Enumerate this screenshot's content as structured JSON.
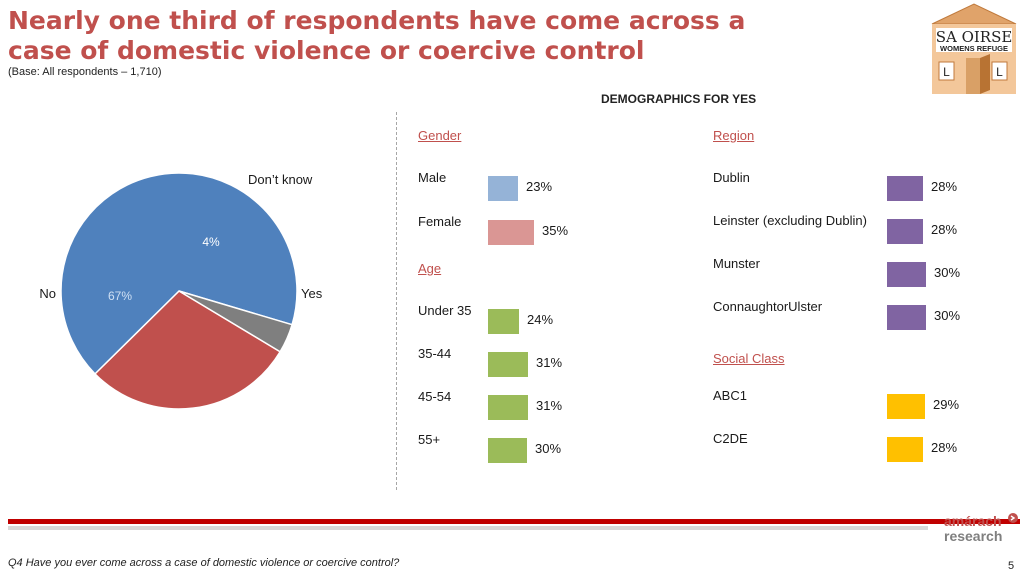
{
  "title": "Nearly one third of respondents have come across a case of domestic violence or coercive control",
  "base_note": "(Base: All respondents – 1,710)",
  "logo": {
    "line1": "SA OIRSE",
    "line2": "WOMENS REFUGE",
    "letter": "L"
  },
  "demographics_heading": "DEMOGRAPHICS FOR YES",
  "footer_question": "Q4 Have you ever come across a case of domestic violence or coercive control?",
  "page_number": "5",
  "brand": {
    "line1": "amárach",
    "line2": "research"
  },
  "colors": {
    "accent": "#c0504d",
    "no": "#4f81bd",
    "yes": "#c0504d",
    "dont_know": "#7f7f7f",
    "male": "#95b3d7",
    "female": "#da9694",
    "age": "#9bbb59",
    "region": "#8064a2",
    "social": "#ffc000"
  },
  "chart_data": [
    {
      "type": "pie",
      "slices": [
        {
          "label": "Yes",
          "value": 29,
          "value_label": "29%"
        },
        {
          "label": "No",
          "value": 67,
          "value_label": "67%"
        },
        {
          "label": "Don’t know",
          "value": 4,
          "value_label": "4%"
        }
      ]
    },
    {
      "type": "bar",
      "heading": "DEMOGRAPHICS FOR YES",
      "groups": [
        {
          "name": "Gender",
          "items": [
            {
              "label": "Male",
              "value": 23,
              "value_label": "23%"
            },
            {
              "label": "Female",
              "value": 35,
              "value_label": "35%"
            }
          ]
        },
        {
          "name": "Age",
          "items": [
            {
              "label": "Under 35",
              "value": 24,
              "value_label": "24%"
            },
            {
              "label": "35-44",
              "value": 31,
              "value_label": "31%"
            },
            {
              "label": "45-54",
              "value": 31,
              "value_label": "31%"
            },
            {
              "label": "55+",
              "value": 30,
              "value_label": "30%"
            }
          ]
        },
        {
          "name": "Region",
          "items": [
            {
              "label": "Dublin",
              "value": 28,
              "value_label": "28%"
            },
            {
              "label": "Leinster (excluding Dublin)",
              "value": 28,
              "value_label": "28%"
            },
            {
              "label": "Munster",
              "value": 30,
              "value_label": "30%"
            },
            {
              "label": "ConnaughtorUlster",
              "value": 30,
              "value_label": "30%"
            }
          ]
        },
        {
          "name": "Social Class",
          "items": [
            {
              "label": "ABC1",
              "value": 29,
              "value_label": "29%"
            },
            {
              "label": "C2DE",
              "value": 28,
              "value_label": "28%"
            }
          ]
        }
      ]
    }
  ]
}
